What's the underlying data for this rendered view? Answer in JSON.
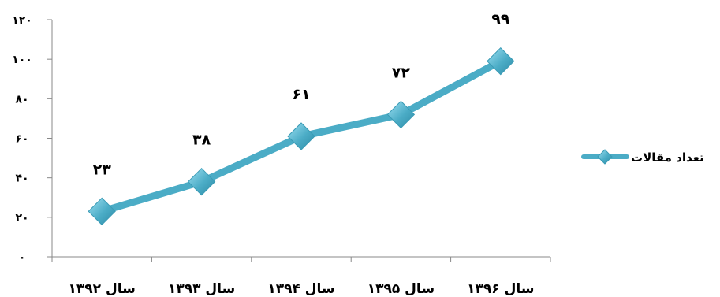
{
  "chart_data": {
    "type": "line",
    "categories": [
      "سال ۱۳۹۲",
      "سال ۱۳۹۳",
      "سال ۱۳۹۴",
      "سال ۱۳۹۵",
      "سال ۱۳۹۶"
    ],
    "series": [
      {
        "name": "تعداد مقالات",
        "values": [
          23,
          38,
          61,
          72,
          99
        ],
        "value_labels": [
          "۲۳",
          "۳۸",
          "۶۱",
          "۷۲",
          "۹۹"
        ],
        "color": "#4BACC6"
      }
    ],
    "y_ticks": [
      0,
      20,
      40,
      60,
      80,
      100,
      120
    ],
    "y_tick_labels": [
      "۰",
      "۲۰",
      "۴۰",
      "۶۰",
      "۸۰",
      "۱۰۰",
      "۱۲۰"
    ],
    "ylim": [
      0,
      120
    ],
    "title": "",
    "xlabel": "",
    "ylabel": "",
    "grid": false,
    "legend_position": "right",
    "marker": "diamond"
  }
}
